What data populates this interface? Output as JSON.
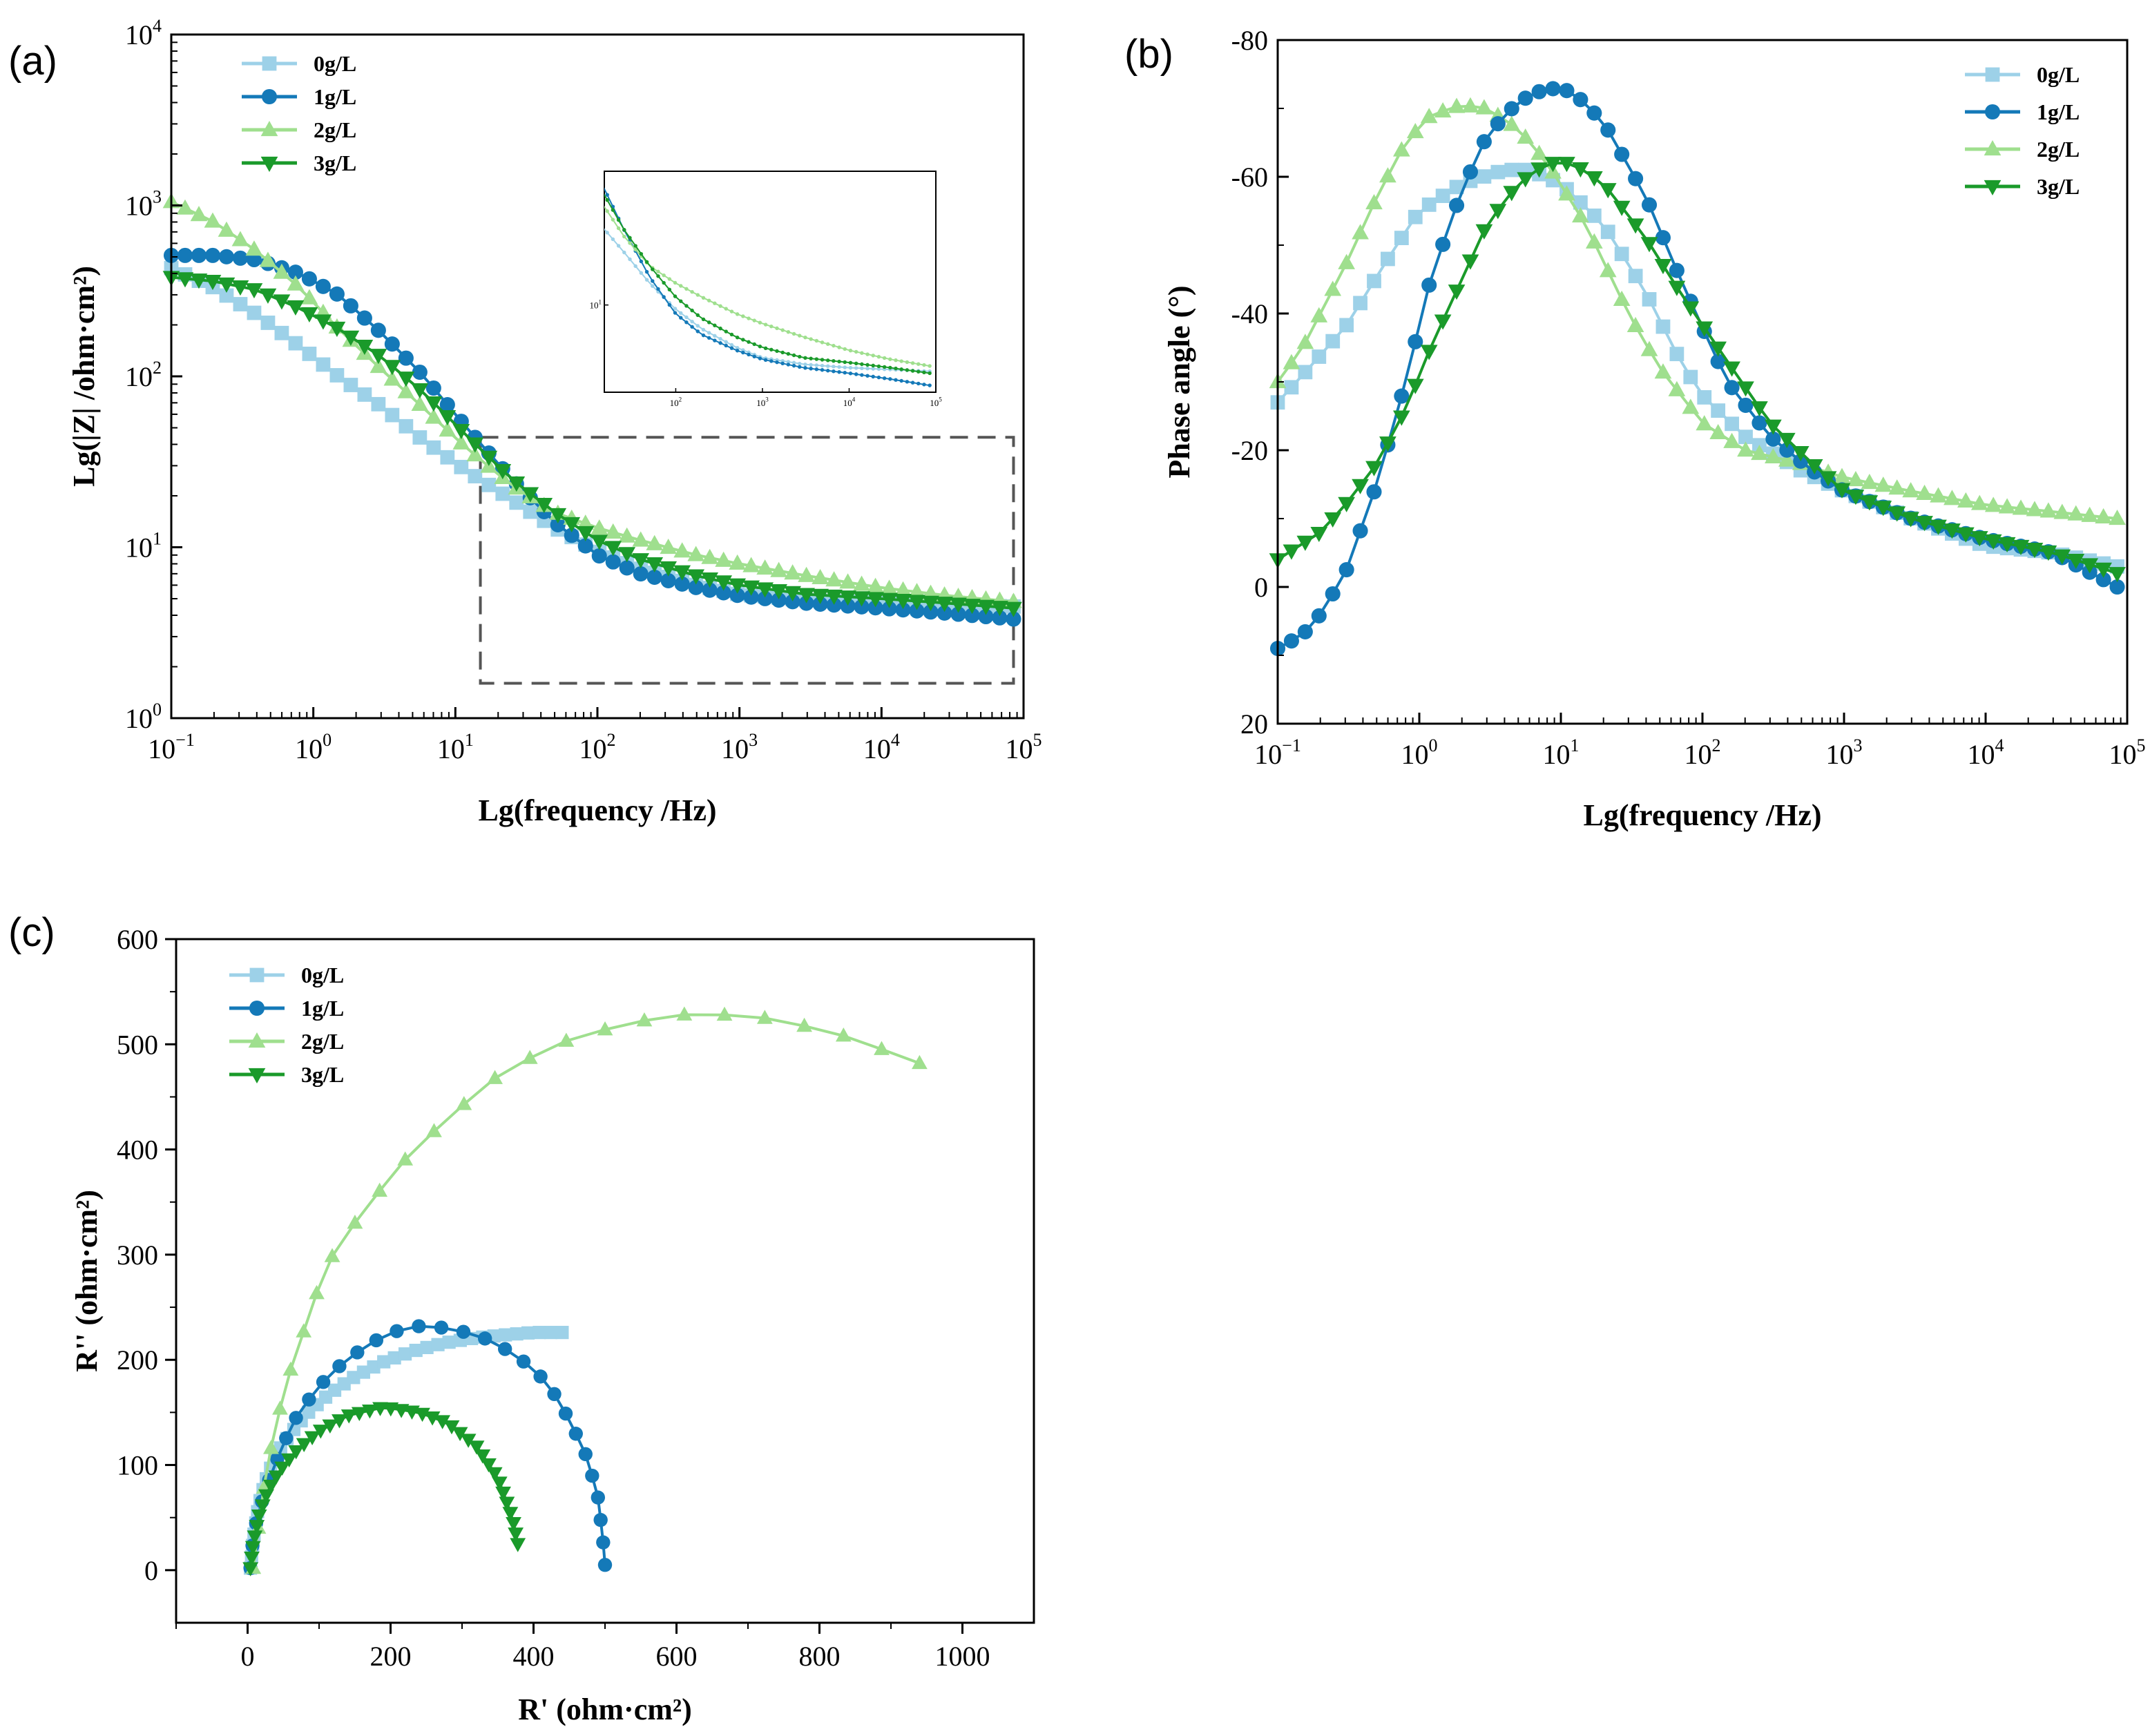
{
  "chart_data": [
    {
      "id": "a",
      "panel_label": "(a)",
      "type": "line",
      "xscale": "log",
      "yscale": "log",
      "xlabel": "Lg(frequency /Hz)",
      "ylabel": "Lg(|Z|  /ohm·cm²)",
      "xlim": [
        0.1,
        100000
      ],
      "ylim": [
        1,
        10000
      ],
      "x_ticks": [
        {
          "base": "10",
          "exp": "−1"
        },
        {
          "base": "10",
          "exp": "0"
        },
        {
          "base": "10",
          "exp": "1"
        },
        {
          "base": "10",
          "exp": "2"
        },
        {
          "base": "10",
          "exp": "3"
        },
        {
          "base": "10",
          "exp": "4"
        },
        {
          "base": "10",
          "exp": "5"
        }
      ],
      "y_ticks": [
        {
          "base": "10",
          "exp": "0"
        },
        {
          "base": "10",
          "exp": "1"
        },
        {
          "base": "10",
          "exp": "2"
        },
        {
          "base": "10",
          "exp": "3"
        },
        {
          "base": "10",
          "exp": "4"
        }
      ],
      "legend": "top-left",
      "zoom_box": {
        "x": [
          15,
          85000
        ],
        "y": [
          1.6,
          44
        ]
      },
      "inset": {
        "xlim": [
          15,
          100000
        ],
        "ylim": [
          3.5,
          50
        ],
        "x_ticks": [
          {
            "base": "10",
            "exp": "2"
          },
          {
            "base": "10",
            "exp": "3"
          },
          {
            "base": "10",
            "exp": "4"
          },
          {
            "base": "10",
            "exp": "5"
          }
        ],
        "y_ticks": [
          {
            "base": "10",
            "exp": "1"
          }
        ]
      },
      "series": [
        {
          "name": "0g/L",
          "marker": "square",
          "points": [
            [
              0.1,
              430
            ],
            [
              0.2,
              330
            ],
            [
              0.4,
              230
            ],
            [
              0.8,
              150
            ],
            [
              1.5,
              100
            ],
            [
              3,
              67
            ],
            [
              6,
              42
            ],
            [
              12,
              28
            ],
            [
              25,
              19
            ],
            [
              50,
              13
            ],
            [
              100,
              9.5
            ],
            [
              200,
              7.5
            ],
            [
              500,
              6
            ],
            [
              1000,
              5.3
            ],
            [
              3000,
              4.9
            ],
            [
              10000,
              4.7
            ],
            [
              30000,
              4.6
            ],
            [
              85000,
              4.5
            ]
          ]
        },
        {
          "name": "1g/L",
          "marker": "circle",
          "points": [
            [
              0.1,
              510
            ],
            [
              0.2,
              510
            ],
            [
              0.4,
              480
            ],
            [
              0.8,
              400
            ],
            [
              1.5,
              300
            ],
            [
              3,
              180
            ],
            [
              6,
              100
            ],
            [
              12,
              50
            ],
            [
              25,
              25
            ],
            [
              50,
              14
            ],
            [
              100,
              9
            ],
            [
              200,
              7
            ],
            [
              500,
              5.8
            ],
            [
              1000,
              5.2
            ],
            [
              3000,
              4.7
            ],
            [
              10000,
              4.4
            ],
            [
              30000,
              4.1
            ],
            [
              85000,
              3.8
            ]
          ]
        },
        {
          "name": "2g/L",
          "marker": "triangle-up",
          "points": [
            [
              0.1,
              1050
            ],
            [
              0.2,
              800
            ],
            [
              0.4,
              540
            ],
            [
              0.8,
              330
            ],
            [
              1.5,
              190
            ],
            [
              3,
              110
            ],
            [
              6,
              65
            ],
            [
              12,
              38
            ],
            [
              25,
              23
            ],
            [
              50,
              16
            ],
            [
              100,
              13
            ],
            [
              200,
              11
            ],
            [
              500,
              9
            ],
            [
              1000,
              8
            ],
            [
              3000,
              6.8
            ],
            [
              10000,
              5.8
            ],
            [
              30000,
              5.2
            ],
            [
              85000,
              4.8
            ]
          ]
        },
        {
          "name": "3g/L",
          "marker": "triangle-down",
          "points": [
            [
              0.1,
              380
            ],
            [
              0.2,
              360
            ],
            [
              0.4,
              320
            ],
            [
              0.8,
              250
            ],
            [
              1.5,
              190
            ],
            [
              3,
              130
            ],
            [
              6,
              80
            ],
            [
              12,
              45
            ],
            [
              25,
              25
            ],
            [
              50,
              16
            ],
            [
              100,
              11
            ],
            [
              200,
              8.5
            ],
            [
              500,
              6.8
            ],
            [
              1000,
              6
            ],
            [
              3000,
              5.3
            ],
            [
              10000,
              5
            ],
            [
              30000,
              4.7
            ],
            [
              85000,
              4.4
            ]
          ]
        }
      ]
    },
    {
      "id": "b",
      "panel_label": "(b)",
      "type": "line",
      "xscale": "log",
      "xlabel": "Lg(frequency /Hz)",
      "ylabel": "Phase angle (°)",
      "xlim": [
        0.1,
        100000
      ],
      "ylim": [
        20,
        -80
      ],
      "x_ticks": [
        {
          "base": "10",
          "exp": "−1"
        },
        {
          "base": "10",
          "exp": "0"
        },
        {
          "base": "10",
          "exp": "1"
        },
        {
          "base": "10",
          "exp": "2"
        },
        {
          "base": "10",
          "exp": "3"
        },
        {
          "base": "10",
          "exp": "4"
        },
        {
          "base": "10",
          "exp": "5"
        }
      ],
      "y_ticks": [
        "-80",
        "-60",
        "-40",
        "-20",
        "0",
        "20"
      ],
      "legend": "top-right",
      "series": [
        {
          "name": "0g/L",
          "marker": "square",
          "points": [
            [
              0.1,
              -27
            ],
            [
              0.15,
              -31
            ],
            [
              0.3,
              -38
            ],
            [
              0.6,
              -48
            ],
            [
              1,
              -55
            ],
            [
              2,
              -59
            ],
            [
              4,
              -61
            ],
            [
              6,
              -61
            ],
            [
              10,
              -59
            ],
            [
              20,
              -53
            ],
            [
              40,
              -43
            ],
            [
              70,
              -33
            ],
            [
              100,
              -28
            ],
            [
              200,
              -22
            ],
            [
              500,
              -17
            ],
            [
              1000,
              -14
            ],
            [
              3000,
              -10
            ],
            [
              10000,
              -6
            ],
            [
              30000,
              -5
            ],
            [
              85000,
              -3
            ]
          ]
        },
        {
          "name": "1g/L",
          "marker": "circle",
          "points": [
            [
              0.1,
              9
            ],
            [
              0.15,
              7
            ],
            [
              0.2,
              4
            ],
            [
              0.3,
              -2
            ],
            [
              0.5,
              -15
            ],
            [
              0.8,
              -30
            ],
            [
              1.2,
              -45
            ],
            [
              2,
              -58
            ],
            [
              3,
              -66
            ],
            [
              5,
              -71
            ],
            [
              8,
              -73
            ],
            [
              12,
              -72.5
            ],
            [
              20,
              -68
            ],
            [
              40,
              -57
            ],
            [
              70,
              -45
            ],
            [
              150,
              -30
            ],
            [
              300,
              -22
            ],
            [
              600,
              -17
            ],
            [
              1000,
              -14
            ],
            [
              3000,
              -10
            ],
            [
              10000,
              -7
            ],
            [
              30000,
              -5
            ],
            [
              85000,
              0
            ]
          ]
        },
        {
          "name": "2g/L",
          "marker": "triangle-up",
          "points": [
            [
              0.1,
              -30
            ],
            [
              0.15,
              -35
            ],
            [
              0.2,
              -40
            ],
            [
              0.3,
              -47
            ],
            [
              0.5,
              -57
            ],
            [
              0.8,
              -65
            ],
            [
              1.2,
              -69
            ],
            [
              2,
              -70.5
            ],
            [
              3,
              -70
            ],
            [
              5,
              -67
            ],
            [
              8,
              -62
            ],
            [
              15,
              -53
            ],
            [
              30,
              -40
            ],
            [
              50,
              -32
            ],
            [
              100,
              -24
            ],
            [
              200,
              -20
            ],
            [
              500,
              -18
            ],
            [
              1000,
              -16
            ],
            [
              3000,
              -14
            ],
            [
              10000,
              -12
            ],
            [
              30000,
              -11
            ],
            [
              85000,
              -10
            ]
          ]
        },
        {
          "name": "3g/L",
          "marker": "triangle-down",
          "points": [
            [
              0.1,
              -4
            ],
            [
              0.2,
              -8
            ],
            [
              0.3,
              -12
            ],
            [
              0.5,
              -18
            ],
            [
              0.8,
              -26
            ],
            [
              1.2,
              -35
            ],
            [
              2,
              -45
            ],
            [
              3,
              -53
            ],
            [
              5,
              -59
            ],
            [
              8,
              -62
            ],
            [
              12,
              -62
            ],
            [
              20,
              -59
            ],
            [
              40,
              -51
            ],
            [
              70,
              -43
            ],
            [
              150,
              -33
            ],
            [
              300,
              -24
            ],
            [
              600,
              -18
            ],
            [
              1000,
              -14
            ],
            [
              3000,
              -10
            ],
            [
              10000,
              -7
            ],
            [
              30000,
              -5
            ],
            [
              85000,
              -2
            ]
          ]
        }
      ]
    },
    {
      "id": "c",
      "panel_label": "(c)",
      "type": "line",
      "xlabel": "R' (ohm·cm²)",
      "ylabel": "R'' (ohm·cm²)",
      "xlim": [
        -100,
        1100
      ],
      "ylim": [
        -50,
        600
      ],
      "x_ticks": [
        "0",
        "200",
        "400",
        "600",
        "800",
        "1000"
      ],
      "y_ticks": [
        "0",
        "100",
        "200",
        "300",
        "400",
        "500",
        "600"
      ],
      "legend": "top-left",
      "series": [
        {
          "name": "0g/L",
          "marker": "square",
          "points": [
            [
              4,
              2
            ],
            [
              8,
              30
            ],
            [
              15,
              60
            ],
            [
              25,
              85
            ],
            [
              40,
              110
            ],
            [
              60,
              130
            ],
            [
              85,
              150
            ],
            [
              115,
              168
            ],
            [
              150,
              184
            ],
            [
              190,
              198
            ],
            [
              230,
              208
            ],
            [
              275,
              216
            ],
            [
              320,
              221
            ],
            [
              365,
              224
            ],
            [
              400,
              226
            ],
            [
              440,
              226
            ]
          ]
        },
        {
          "name": "1g/L",
          "marker": "circle",
          "points": [
            [
              4,
              2
            ],
            [
              6,
              20
            ],
            [
              12,
              45
            ],
            [
              22,
              70
            ],
            [
              35,
              95
            ],
            [
              50,
              120
            ],
            [
              70,
              148
            ],
            [
              100,
              175
            ],
            [
              130,
              195
            ],
            [
              165,
              213
            ],
            [
              200,
              226
            ],
            [
              240,
              232
            ],
            [
              285,
              230
            ],
            [
              330,
              221
            ],
            [
              375,
              205
            ],
            [
              420,
              178
            ],
            [
              450,
              143
            ],
            [
              475,
              107
            ],
            [
              490,
              70
            ],
            [
              497,
              30
            ],
            [
              500,
              5
            ]
          ]
        },
        {
          "name": "2g/L",
          "marker": "triangle-up",
          "points": [
            [
              8,
              2
            ],
            [
              15,
              40
            ],
            [
              25,
              90
            ],
            [
              40,
              140
            ],
            [
              60,
              190
            ],
            [
              85,
              240
            ],
            [
              110,
              290
            ],
            [
              160,
              340
            ],
            [
              220,
              390
            ],
            [
              280,
              430
            ],
            [
              350,
              470
            ],
            [
              430,
              500
            ],
            [
              530,
              520
            ],
            [
              630,
              530
            ],
            [
              740,
              524
            ],
            [
              840,
              507
            ],
            [
              940,
              482
            ]
          ]
        },
        {
          "name": "3g/L",
          "marker": "triangle-down",
          "points": [
            [
              4,
              2
            ],
            [
              8,
              25
            ],
            [
              15,
              50
            ],
            [
              28,
              75
            ],
            [
              45,
              95
            ],
            [
              70,
              115
            ],
            [
              100,
              132
            ],
            [
              140,
              147
            ],
            [
              190,
              155
            ],
            [
              240,
              150
            ],
            [
              280,
              140
            ],
            [
              320,
              118
            ],
            [
              350,
              88
            ],
            [
              365,
              60
            ],
            [
              372,
              45
            ],
            [
              378,
              25
            ]
          ]
        }
      ]
    }
  ],
  "colors": {
    "0g/L": "#9dd1e8",
    "1g/L": "#1479b8",
    "2g/L": "#9fdf8e",
    "3g/L": "#1a9a2a",
    "axis": "#000000",
    "zoom": "#555555"
  }
}
